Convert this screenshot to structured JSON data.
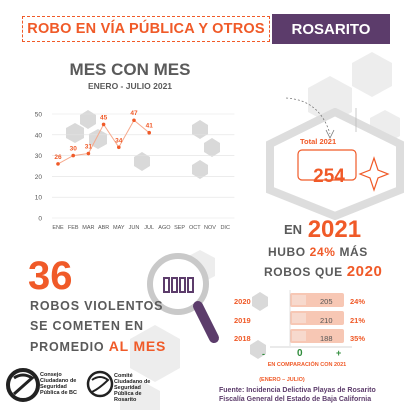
{
  "header": {
    "title": "ROBO EN VÍA PÚBLICA Y OTROS",
    "municipality": "ROSARITO"
  },
  "chart_data": {
    "type": "line",
    "title": "MES CON MES",
    "subtitle": "ENERO - JULIO 2021",
    "categories": [
      "ENE",
      "FEB",
      "MAR",
      "ABR",
      "MAY",
      "JUN",
      "JUL",
      "AGO",
      "SEP",
      "OCT",
      "NOV",
      "DIC"
    ],
    "values": [
      26,
      30,
      31,
      45,
      34,
      47,
      41,
      null,
      null,
      null,
      null,
      null
    ],
    "y_ticks": [
      0,
      10,
      20,
      30,
      40,
      50
    ],
    "ylim": [
      0,
      50
    ],
    "grid": true
  },
  "violent": {
    "number": "36",
    "line1": "ROBOS VIOLENTOS",
    "line2": "SE COMETEN EN",
    "line3_prefix": "PROMEDIO",
    "line3_highlight": "AL MES"
  },
  "total": {
    "label": "Total 2021",
    "value": "254"
  },
  "summary": {
    "en": "EN",
    "year": "2021",
    "hubo": "HUBO",
    "pct": "24%",
    "mas": "MÁS",
    "robos_que": "ROBOS QUE",
    "compare_year": "2020"
  },
  "comparison": {
    "rows": [
      {
        "year": "2020",
        "value": 205,
        "pct": "24%"
      },
      {
        "year": "2019",
        "value": 210,
        "pct": "21%"
      },
      {
        "year": "2018",
        "value": 188,
        "pct": "35%"
      }
    ],
    "minus": "-",
    "zero": "0",
    "plus": "+",
    "caption": "EN COMPARACIÓN CON 2021",
    "range": "(ENERO – JULIO)"
  },
  "logos": {
    "left_text": [
      "Consejo",
      "Ciudadano de",
      "Seguridad",
      "Pública de BC"
    ],
    "right_text": [
      "Comité",
      "Ciudadano de",
      "Seguridad",
      "Pública de",
      "Rosarito"
    ]
  },
  "source": {
    "line1": "Fuente: Incidencia Delictiva Playas de Rosarito",
    "line2": "Fiscalía General del Estado de Baja California"
  },
  "colors": {
    "orange": "#f05a28",
    "purple": "#5c3c6b",
    "gray": "#5a5a5a"
  }
}
